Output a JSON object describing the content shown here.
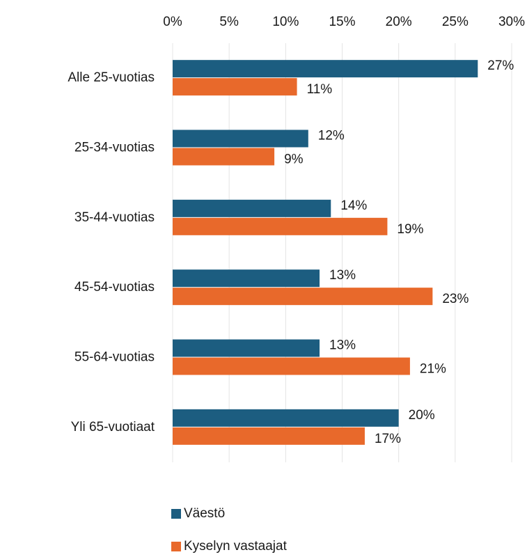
{
  "chart_data": {
    "type": "bar",
    "orientation": "horizontal",
    "categories": [
      "Alle 25-vuotias",
      "25-34-vuotias",
      "35-44-vuotias",
      "45-54-vuotias",
      "55-64-vuotias",
      "Yli 65-vuotiaat"
    ],
    "series": [
      {
        "name": "Väestö",
        "color": "#1c5d80",
        "values": [
          27,
          12,
          14,
          13,
          13,
          20
        ],
        "value_labels": [
          "27%",
          "12%",
          "14%",
          "13%",
          "13%",
          "20%"
        ]
      },
      {
        "name": "Kyselyn vastaajat",
        "color": "#e8692b",
        "values": [
          11,
          9,
          19,
          23,
          21,
          17
        ],
        "value_labels": [
          "11%",
          "9%",
          "19%",
          "23%",
          "21%",
          "17%"
        ]
      }
    ],
    "xlim": [
      0,
      30
    ],
    "xticks": [
      {
        "value": 0,
        "label": "0%"
      },
      {
        "value": 5,
        "label": "5%"
      },
      {
        "value": 10,
        "label": "10%"
      },
      {
        "value": 15,
        "label": "15%"
      },
      {
        "value": 20,
        "label": "20%"
      },
      {
        "value": 25,
        "label": "25%"
      },
      {
        "value": 30,
        "label": "30%"
      }
    ],
    "grid": true,
    "legend": "bottom"
  }
}
